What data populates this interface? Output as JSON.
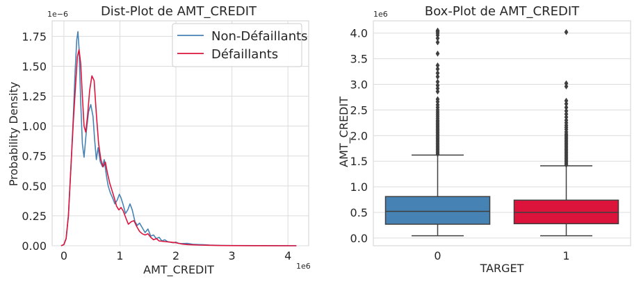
{
  "chart_data": [
    {
      "type": "line",
      "title": "Dist-Plot de AMT_CREDIT",
      "xlabel": "AMT_CREDIT",
      "ylabel": "Probability Density",
      "x_offset_text": "1e6",
      "y_offset_text": "1e−6",
      "xlim": [
        -0.21,
        4.37
      ],
      "ylim": [
        0,
        1.88
      ],
      "x_ticks": [
        0,
        1,
        2,
        3,
        4
      ],
      "x_tick_labels": [
        "0",
        "1",
        "2",
        "3",
        "4"
      ],
      "y_ticks": [
        0,
        0.25,
        0.5,
        0.75,
        1.0,
        1.25,
        1.5,
        1.75
      ],
      "y_tick_labels": [
        "0.00",
        "0.25",
        "0.50",
        "0.75",
        "1.00",
        "1.25",
        "1.50",
        "1.75"
      ],
      "grid": true,
      "legend_position": "top-right",
      "series": [
        {
          "name": "Non-Défaillants",
          "color": "#4682b4",
          "x": [
            -0.05,
            0.0,
            0.04,
            0.08,
            0.13,
            0.17,
            0.2,
            0.23,
            0.25,
            0.27,
            0.3,
            0.33,
            0.36,
            0.4,
            0.44,
            0.48,
            0.52,
            0.55,
            0.58,
            0.61,
            0.65,
            0.69,
            0.72,
            0.76,
            0.79,
            0.83,
            0.87,
            0.91,
            0.95,
            0.99,
            1.02,
            1.06,
            1.1,
            1.14,
            1.18,
            1.22,
            1.27,
            1.31,
            1.35,
            1.4,
            1.45,
            1.5,
            1.55,
            1.6,
            1.65,
            1.7,
            1.75,
            1.8,
            1.85,
            1.9,
            1.95,
            2.0,
            2.05,
            2.1,
            2.2,
            2.3,
            2.4,
            2.5,
            2.6,
            2.8,
            3.0,
            3.5,
            4.15
          ],
          "y": [
            0.0,
            0.01,
            0.06,
            0.25,
            0.7,
            1.1,
            1.45,
            1.72,
            1.79,
            1.65,
            1.2,
            0.85,
            0.74,
            0.95,
            1.12,
            1.18,
            1.08,
            0.88,
            0.72,
            0.82,
            0.7,
            0.66,
            0.72,
            0.58,
            0.5,
            0.44,
            0.4,
            0.35,
            0.38,
            0.43,
            0.4,
            0.34,
            0.27,
            0.3,
            0.35,
            0.3,
            0.2,
            0.17,
            0.19,
            0.15,
            0.11,
            0.14,
            0.08,
            0.09,
            0.06,
            0.07,
            0.04,
            0.05,
            0.035,
            0.03,
            0.025,
            0.03,
            0.02,
            0.018,
            0.02,
            0.012,
            0.01,
            0.008,
            0.005,
            0.003,
            0.002,
            0.001,
            0.0
          ]
        },
        {
          "name": "Défaillants",
          "color": "#dc143c",
          "x": [
            -0.05,
            0.0,
            0.04,
            0.08,
            0.13,
            0.17,
            0.21,
            0.24,
            0.27,
            0.3,
            0.33,
            0.36,
            0.39,
            0.42,
            0.46,
            0.5,
            0.54,
            0.58,
            0.62,
            0.66,
            0.7,
            0.74,
            0.78,
            0.82,
            0.86,
            0.9,
            0.94,
            0.98,
            1.02,
            1.06,
            1.1,
            1.15,
            1.2,
            1.25,
            1.3,
            1.35,
            1.4,
            1.45,
            1.5,
            1.55,
            1.6,
            1.65,
            1.7,
            1.8,
            1.9,
            2.0,
            2.1,
            2.2,
            2.4,
            2.6,
            2.8,
            3.0,
            3.5,
            4.15
          ],
          "y": [
            0.0,
            0.01,
            0.06,
            0.25,
            0.7,
            1.05,
            1.35,
            1.58,
            1.64,
            1.52,
            1.25,
            1.0,
            0.95,
            1.08,
            1.3,
            1.42,
            1.38,
            1.1,
            0.85,
            0.72,
            0.66,
            0.7,
            0.6,
            0.52,
            0.46,
            0.4,
            0.33,
            0.3,
            0.32,
            0.29,
            0.24,
            0.18,
            0.2,
            0.21,
            0.16,
            0.12,
            0.1,
            0.09,
            0.1,
            0.07,
            0.05,
            0.06,
            0.04,
            0.035,
            0.03,
            0.025,
            0.015,
            0.01,
            0.006,
            0.004,
            0.002,
            0.001,
            0.0005,
            0.0
          ]
        }
      ]
    },
    {
      "type": "box",
      "title": "Box-Plot de AMT_CREDIT",
      "xlabel": "TARGET",
      "ylabel": "AMT_CREDIT",
      "y_offset_text": "1e6",
      "ylim": [
        -0.15,
        4.24
      ],
      "y_ticks": [
        0,
        0.5,
        1.0,
        1.5,
        2.0,
        2.5,
        3.0,
        3.5,
        4.0
      ],
      "y_tick_labels": [
        "0.0",
        "0.5",
        "1.0",
        "1.5",
        "2.0",
        "2.5",
        "3.0",
        "3.5",
        "4.0"
      ],
      "categories": [
        "0",
        "1"
      ],
      "grid": true,
      "boxes": [
        {
          "category": "0",
          "color": "#4682b4",
          "whisker_low": 0.045,
          "q1": 0.27,
          "median": 0.52,
          "q3": 0.81,
          "whisker_high": 1.62,
          "outliers": [
            1.64,
            1.67,
            1.7,
            1.73,
            1.76,
            1.79,
            1.82,
            1.85,
            1.88,
            1.91,
            1.94,
            1.97,
            2.0,
            2.03,
            2.06,
            2.09,
            2.12,
            2.15,
            2.18,
            2.21,
            2.24,
            2.27,
            2.3,
            2.34,
            2.38,
            2.42,
            2.46,
            2.5,
            2.55,
            2.6,
            2.66,
            2.71,
            2.86,
            2.92,
            2.98,
            3.05,
            3.15,
            3.22,
            3.3,
            3.37,
            3.6,
            3.82,
            3.9,
            3.96,
            4.0,
            4.03,
            4.05
          ]
        },
        {
          "category": "1",
          "color": "#dc143c",
          "whisker_low": 0.045,
          "q1": 0.28,
          "median": 0.5,
          "q3": 0.74,
          "whisker_high": 1.41,
          "outliers": [
            1.43,
            1.46,
            1.49,
            1.52,
            1.55,
            1.58,
            1.61,
            1.64,
            1.67,
            1.7,
            1.73,
            1.76,
            1.79,
            1.82,
            1.85,
            1.88,
            1.91,
            1.94,
            1.97,
            2.0,
            2.03,
            2.07,
            2.12,
            2.16,
            2.2,
            2.25,
            2.3,
            2.36,
            2.42,
            2.48,
            2.55,
            2.62,
            2.68,
            2.96,
            3.02,
            4.02
          ]
        }
      ]
    }
  ]
}
